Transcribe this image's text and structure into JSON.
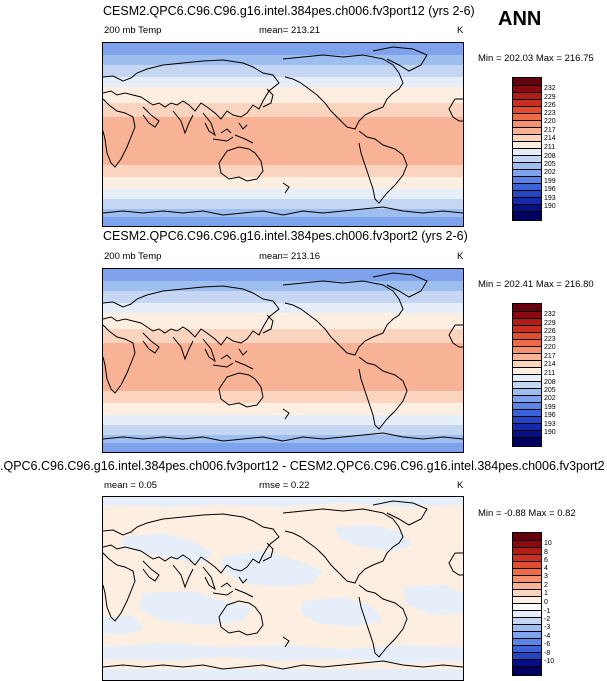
{
  "season": "ANN",
  "panels": [
    {
      "title": "CESM2.QPC6.C96.C96.g16.intel.384pes.ch006.fv3port12 (yrs 2-6)",
      "left_label": "200 mb Temp",
      "center_label": "mean= 213.21",
      "units": "K",
      "min_max": "Min = 202.03  Max = 216.75",
      "colorbar_labels": [
        "232",
        "229",
        "226",
        "223",
        "220",
        "217",
        "214",
        "211",
        "208",
        "205",
        "202",
        "199",
        "196",
        "193",
        "190"
      ]
    },
    {
      "title": "CESM2.QPC6.C96.C96.g16.intel.384pes.ch006.fv3port2 (yrs 2-6)",
      "left_label": "200 mb Temp",
      "center_label": "mean= 213.16",
      "units": "K",
      "min_max": "Min = 202.41  Max = 216.80",
      "colorbar_labels": [
        "232",
        "229",
        "226",
        "223",
        "220",
        "217",
        "214",
        "211",
        "208",
        "205",
        "202",
        "199",
        "196",
        "193",
        "190"
      ]
    },
    {
      "title": ".QPC6.C96.C96.g16.intel.384pes.ch006.fv3port12 - CESM2.QPC6.C96.C96.g16.intel.384pes.ch006.fv3port2",
      "left_label": "mean =  0.05",
      "center_label": "rmse =  0.22",
      "units": "K",
      "min_max": "Min =  -0.88  Max =   0.82",
      "colorbar_labels": [
        "10",
        "8",
        "6",
        "4",
        "3",
        "2",
        "1",
        "0",
        "-1",
        "-2",
        "-3",
        "-4",
        "-6",
        "-8",
        "-10"
      ]
    }
  ],
  "colors": {
    "temp_scale": [
      "#67000d",
      "#8b0a10",
      "#b01c17",
      "#cb2e22",
      "#e04d31",
      "#ef6b48",
      "#f5916e",
      "#f8b396",
      "#fad4bf",
      "#fdeee2",
      "#e6eef9",
      "#c4d6f2",
      "#9ebeef",
      "#7ea3ec",
      "#5a84e6",
      "#3b63d9",
      "#2545c4",
      "#1329a8",
      "#070f85",
      "#000060"
    ],
    "diff_scale": [
      "#67000d",
      "#8b0a10",
      "#b01c17",
      "#cb2e22",
      "#e04d31",
      "#ef6b48",
      "#f5916e",
      "#f8b396",
      "#fad4bf",
      "#fdeee2",
      "#ffffff",
      "#e6eef9",
      "#c4d6f2",
      "#9ebeef",
      "#7ea3ec",
      "#5a84e6",
      "#3b63d9",
      "#2545c4",
      "#070f85",
      "#000060"
    ],
    "coastline": "#000000"
  }
}
